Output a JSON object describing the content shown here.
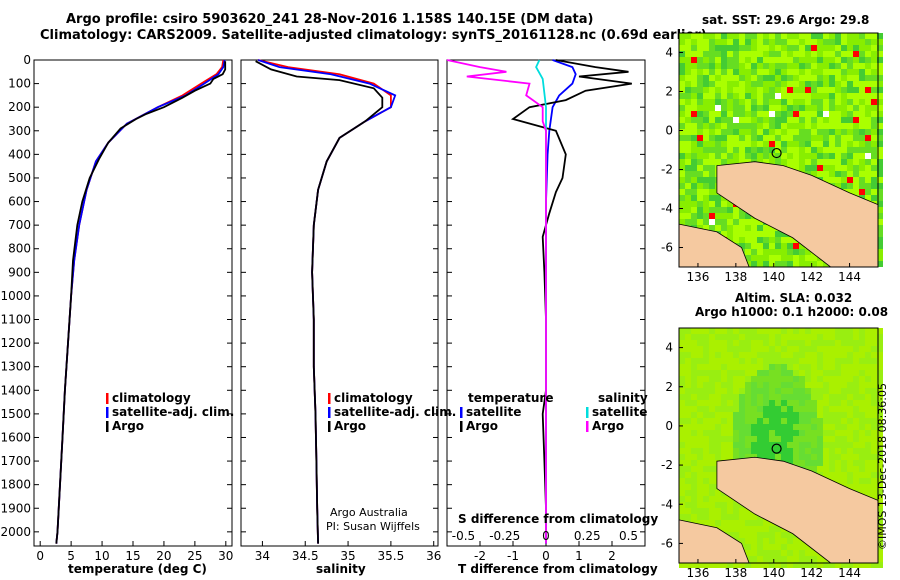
{
  "header": {
    "line1": "Argo profile: csiro 5903620_241 28-Nov-2016 1.158S 140.15E (DM data)",
    "line2": "Climatology: CARS2009. Satellite-adjusted climatology: synTS_20161128.nc (0.69d earlier)"
  },
  "credit": "©IMOS 13-Dec-2018 08:36:05",
  "chart_data": [
    {
      "id": "temperature",
      "type": "line",
      "xlabel": "temperature (deg C)",
      "ylabel": "depth (m)",
      "xlim": [
        -1,
        31
      ],
      "ylim": [
        2060,
        0
      ],
      "xticks": [
        0,
        5,
        10,
        15,
        20,
        25,
        30
      ],
      "yticks": [
        0,
        100,
        200,
        300,
        400,
        500,
        600,
        700,
        800,
        900,
        1000,
        1100,
        1200,
        1300,
        1400,
        1500,
        1600,
        1700,
        1800,
        1900,
        2000
      ],
      "legend": [
        "climatology",
        "satellite-adj. clim.",
        "Argo"
      ],
      "series": [
        {
          "name": "climatology",
          "color": "#ff0000",
          "points": [
            [
              29.6,
              0
            ],
            [
              29.4,
              30
            ],
            [
              28.5,
              60
            ],
            [
              26,
              100
            ],
            [
              23,
              150
            ],
            [
              19,
              200
            ],
            [
              14,
              270
            ],
            [
              11,
              350
            ],
            [
              9,
              430
            ],
            [
              7.5,
              550
            ],
            [
              6.3,
              700
            ],
            [
              5.5,
              850
            ],
            [
              5,
              1000
            ],
            [
              4.5,
              1200
            ],
            [
              4,
              1400
            ],
            [
              3.6,
              1600
            ],
            [
              3.2,
              1800
            ],
            [
              2.8,
              2000
            ],
            [
              2.6,
              2050
            ]
          ]
        },
        {
          "name": "satellite-adj. clim.",
          "color": "#0000ff",
          "points": [
            [
              29.8,
              0
            ],
            [
              29.6,
              30
            ],
            [
              28.8,
              60
            ],
            [
              26.5,
              100
            ],
            [
              23.5,
              150
            ],
            [
              19,
              200
            ],
            [
              14,
              270
            ],
            [
              11,
              350
            ],
            [
              9,
              430
            ],
            [
              7.5,
              550
            ],
            [
              6.3,
              700
            ],
            [
              5.5,
              850
            ],
            [
              5,
              1000
            ],
            [
              4.5,
              1200
            ],
            [
              4,
              1400
            ],
            [
              3.6,
              1600
            ],
            [
              3.2,
              1800
            ],
            [
              2.8,
              2000
            ],
            [
              2.6,
              2050
            ]
          ]
        },
        {
          "name": "Argo",
          "color": "#000000",
          "points": [
            [
              29.9,
              5
            ],
            [
              29.9,
              40
            ],
            [
              29.5,
              60
            ],
            [
              28,
              80
            ],
            [
              27.5,
              100
            ],
            [
              25,
              130
            ],
            [
              23,
              160
            ],
            [
              20,
              200
            ],
            [
              17,
              230
            ],
            [
              15.5,
              250
            ],
            [
              13,
              290
            ],
            [
              11,
              350
            ],
            [
              9.5,
              420
            ],
            [
              8,
              500
            ],
            [
              6.8,
              600
            ],
            [
              6,
              700
            ],
            [
              5.3,
              850
            ],
            [
              5,
              1000
            ],
            [
              4.5,
              1200
            ],
            [
              4,
              1400
            ],
            [
              3.6,
              1600
            ],
            [
              3.2,
              1800
            ],
            [
              2.8,
              2000
            ],
            [
              2.6,
              2050
            ]
          ]
        }
      ]
    },
    {
      "id": "salinity",
      "type": "line",
      "xlabel": "salinity",
      "xlim": [
        33.75,
        36.05
      ],
      "ylim": [
        2060,
        0
      ],
      "xticks": [
        34,
        34.5,
        35,
        35.5,
        36
      ],
      "legend": [
        "climatology",
        "satellite-adj. clim.",
        "Argo"
      ],
      "annotation": [
        "Argo Australia",
        "PI: Susan Wijffels"
      ],
      "series": [
        {
          "name": "climatology",
          "color": "#ff0000",
          "points": [
            [
              33.95,
              0
            ],
            [
              34.3,
              30
            ],
            [
              34.9,
              60
            ],
            [
              35.3,
              100
            ],
            [
              35.5,
              150
            ],
            [
              35.5,
              200
            ],
            [
              35.2,
              260
            ],
            [
              34.9,
              330
            ],
            [
              34.75,
              430
            ],
            [
              34.65,
              550
            ],
            [
              34.6,
              700
            ],
            [
              34.58,
              900
            ],
            [
              34.6,
              1100
            ],
            [
              34.6,
              1300
            ],
            [
              34.62,
              1500
            ],
            [
              34.63,
              1700
            ],
            [
              34.64,
              1900
            ],
            [
              34.65,
              2050
            ]
          ]
        },
        {
          "name": "satellite-adj. clim.",
          "color": "#0000ff",
          "points": [
            [
              33.95,
              0
            ],
            [
              34.2,
              30
            ],
            [
              34.8,
              60
            ],
            [
              35.25,
              100
            ],
            [
              35.55,
              150
            ],
            [
              35.5,
              200
            ],
            [
              35.2,
              260
            ],
            [
              34.9,
              330
            ],
            [
              34.75,
              430
            ],
            [
              34.65,
              550
            ],
            [
              34.6,
              700
            ],
            [
              34.58,
              900
            ],
            [
              34.6,
              1100
            ],
            [
              34.6,
              1300
            ],
            [
              34.62,
              1500
            ],
            [
              34.63,
              1700
            ],
            [
              34.64,
              1900
            ],
            [
              34.65,
              2050
            ]
          ]
        },
        {
          "name": "Argo",
          "color": "#000000",
          "points": [
            [
              33.92,
              5
            ],
            [
              34.1,
              40
            ],
            [
              34.4,
              70
            ],
            [
              34.9,
              85
            ],
            [
              35.3,
              120
            ],
            [
              35.4,
              160
            ],
            [
              35.4,
              200
            ],
            [
              35.2,
              260
            ],
            [
              34.9,
              330
            ],
            [
              34.75,
              430
            ],
            [
              34.65,
              550
            ],
            [
              34.6,
              700
            ],
            [
              34.58,
              900
            ],
            [
              34.6,
              1100
            ],
            [
              34.6,
              1300
            ],
            [
              34.62,
              1500
            ],
            [
              34.63,
              1700
            ],
            [
              34.64,
              1900
            ],
            [
              34.65,
              2050
            ]
          ]
        }
      ]
    },
    {
      "id": "difference",
      "type": "line",
      "xlabel": "T difference from climatology",
      "xlabel_top": "S difference from climatology",
      "xlim": [
        -3,
        3
      ],
      "ylim": [
        2060,
        0
      ],
      "xticks": [
        -2,
        -1,
        0,
        1,
        2
      ],
      "xticks_top": [
        -0.5,
        -0.25,
        0,
        0.25,
        0.5
      ],
      "legend_left": [
        "temperature",
        "satellite",
        "Argo"
      ],
      "legend_right": [
        "salinity",
        "satellite",
        "Argo"
      ],
      "series": [
        {
          "name": "T satellite",
          "color": "#0000ff",
          "points": [
            [
              0.2,
              0
            ],
            [
              0.8,
              30
            ],
            [
              0.9,
              60
            ],
            [
              0.8,
              100
            ],
            [
              0.4,
              150
            ],
            [
              0.2,
              200
            ],
            [
              0.1,
              300
            ],
            [
              0.05,
              400
            ],
            [
              0,
              600
            ],
            [
              0,
              1000
            ],
            [
              0,
              2050
            ]
          ]
        },
        {
          "name": "T Argo",
          "color": "#000000",
          "points": [
            [
              0.3,
              0
            ],
            [
              1.5,
              30
            ],
            [
              2.5,
              50
            ],
            [
              1.0,
              70
            ],
            [
              2.6,
              100
            ],
            [
              1.2,
              130
            ],
            [
              0.6,
              170
            ],
            [
              -0.5,
              200
            ],
            [
              -1.0,
              250
            ],
            [
              0.3,
              300
            ],
            [
              0.6,
              400
            ],
            [
              0.5,
              500
            ],
            [
              0.3,
              560
            ],
            [
              0.1,
              650
            ],
            [
              -0.1,
              750
            ],
            [
              -0.05,
              900
            ],
            [
              0,
              1100
            ],
            [
              0,
              1400
            ],
            [
              -0.1,
              1500
            ],
            [
              -0.05,
              1700
            ],
            [
              0,
              1900
            ],
            [
              0,
              2050
            ]
          ]
        },
        {
          "name": "S satellite",
          "color": "#00dddd",
          "points": [
            [
              -0.2,
              0
            ],
            [
              -0.3,
              30
            ],
            [
              -0.1,
              80
            ],
            [
              0,
              200
            ],
            [
              0,
              400
            ],
            [
              0,
              800
            ],
            [
              0,
              2050
            ]
          ]
        },
        {
          "name": "S Argo",
          "color": "#ff00ff",
          "points": [
            [
              -3,
              0
            ],
            [
              -2,
              30
            ],
            [
              -1.2,
              50
            ],
            [
              -2.4,
              70
            ],
            [
              -0.5,
              100
            ],
            [
              -0.6,
              150
            ],
            [
              -0.1,
              200
            ],
            [
              -0.1,
              260
            ],
            [
              0,
              300
            ],
            [
              0,
              400
            ],
            [
              0,
              800
            ],
            [
              0,
              2050
            ]
          ]
        }
      ]
    },
    {
      "id": "sst-map",
      "type": "heatmap",
      "title": "sat. SST: 29.6 Argo: 29.8",
      "xlim": [
        135,
        145.5
      ],
      "ylim": [
        -7,
        5
      ],
      "xticks": [
        136,
        138,
        140,
        142,
        144
      ],
      "yticks": [
        4,
        2,
        0,
        -2,
        -4,
        -6
      ],
      "argo_location": [
        140.15,
        -1.158
      ]
    },
    {
      "id": "sla-map",
      "type": "heatmap",
      "title_line1": "Altim. SLA: 0.032",
      "title_line2": "Argo h1000: 0.1 h2000: 0.08",
      "xlim": [
        135,
        145.5
      ],
      "ylim": [
        -7,
        5
      ],
      "xticks": [
        136,
        138,
        140,
        142,
        144
      ],
      "yticks": [
        4,
        2,
        0,
        -2,
        -4,
        -6
      ],
      "argo_location": [
        140.15,
        -1.158
      ]
    }
  ]
}
